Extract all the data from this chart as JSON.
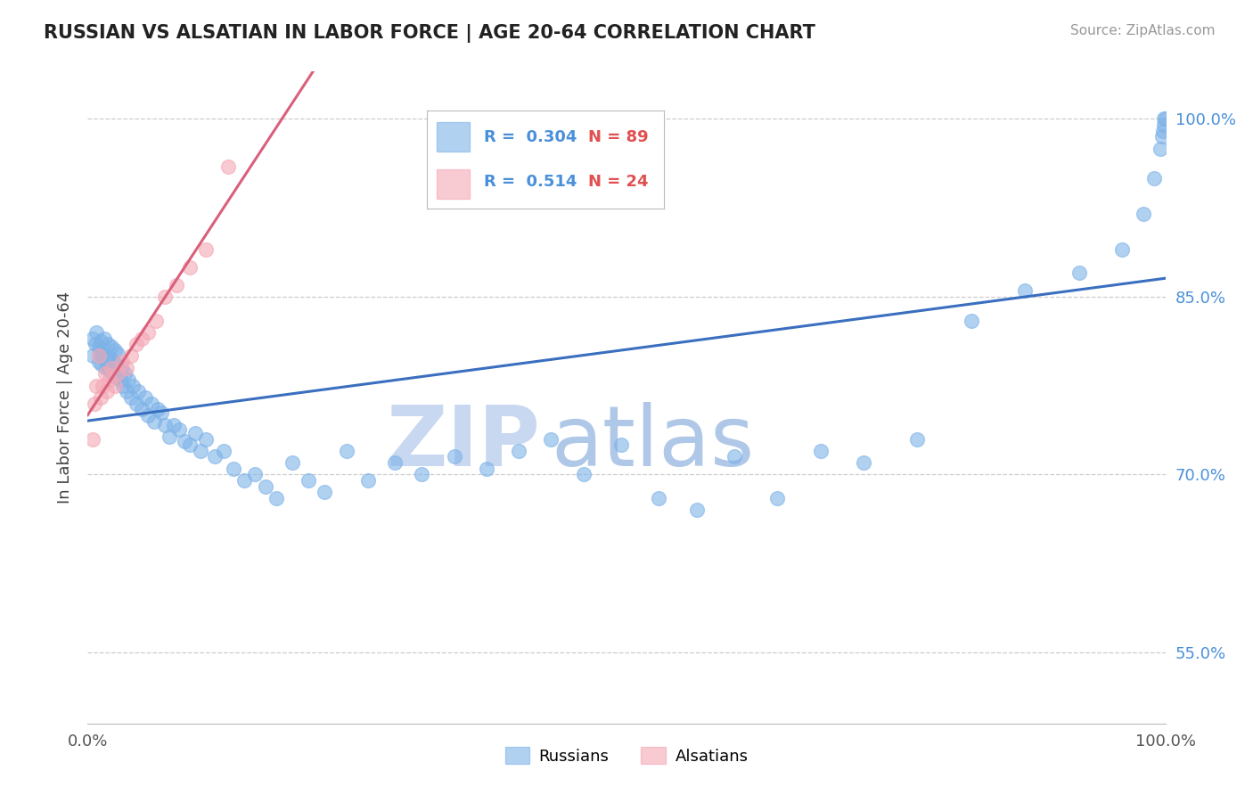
{
  "title": "RUSSIAN VS ALSATIAN IN LABOR FORCE | AGE 20-64 CORRELATION CHART",
  "source_text": "Source: ZipAtlas.com",
  "ylabel": "In Labor Force | Age 20-64",
  "xlim": [
    0.0,
    1.0
  ],
  "ylim": [
    0.49,
    1.04
  ],
  "right_yticks": [
    0.55,
    0.7,
    0.85,
    1.0
  ],
  "right_yticklabels": [
    "55.0%",
    "70.0%",
    "85.0%",
    "100.0%"
  ],
  "xtick_labels": [
    "0.0%",
    "100.0%"
  ],
  "xtick_vals": [
    0.0,
    1.0
  ],
  "russian_R": 0.304,
  "russian_N": 89,
  "alsatian_R": 0.514,
  "alsatian_N": 24,
  "russian_color": "#7EB3E8",
  "alsatian_color": "#F4A7B5",
  "russian_line_color": "#3A6FBF",
  "alsatian_line_color": "#D9607A",
  "background_color": "#FFFFFF",
  "grid_color": "#CCCCCC",
  "watermark_text": "ZIPatlas",
  "watermark_color": "#D0DFF0",
  "title_color": "#222222",
  "russians_x": [
    0.005,
    0.005,
    0.007,
    0.008,
    0.01,
    0.01,
    0.011,
    0.012,
    0.013,
    0.014,
    0.015,
    0.015,
    0.017,
    0.018,
    0.019,
    0.02,
    0.021,
    0.022,
    0.023,
    0.024,
    0.025,
    0.026,
    0.027,
    0.028,
    0.03,
    0.031,
    0.033,
    0.034,
    0.036,
    0.038,
    0.04,
    0.042,
    0.045,
    0.047,
    0.05,
    0.053,
    0.056,
    0.059,
    0.062,
    0.065,
    0.068,
    0.072,
    0.076,
    0.08,
    0.085,
    0.09,
    0.095,
    0.1,
    0.105,
    0.11,
    0.118,
    0.126,
    0.135,
    0.145,
    0.155,
    0.165,
    0.175,
    0.19,
    0.205,
    0.22,
    0.24,
    0.26,
    0.285,
    0.31,
    0.34,
    0.37,
    0.4,
    0.43,
    0.46,
    0.495,
    0.53,
    0.565,
    0.6,
    0.64,
    0.68,
    0.72,
    0.77,
    0.82,
    0.87,
    0.92,
    0.96,
    0.98,
    0.99,
    0.995,
    0.997,
    0.998,
    0.999,
    0.999,
    1.0
  ],
  "russians_y": [
    0.8,
    0.815,
    0.81,
    0.82,
    0.795,
    0.808,
    0.803,
    0.812,
    0.793,
    0.805,
    0.798,
    0.815,
    0.79,
    0.8,
    0.81,
    0.788,
    0.798,
    0.808,
    0.785,
    0.795,
    0.805,
    0.782,
    0.792,
    0.802,
    0.78,
    0.79,
    0.775,
    0.785,
    0.77,
    0.78,
    0.765,
    0.775,
    0.76,
    0.77,
    0.755,
    0.765,
    0.75,
    0.76,
    0.745,
    0.755,
    0.752,
    0.742,
    0.732,
    0.742,
    0.738,
    0.728,
    0.725,
    0.735,
    0.72,
    0.73,
    0.715,
    0.72,
    0.705,
    0.695,
    0.7,
    0.69,
    0.68,
    0.71,
    0.695,
    0.685,
    0.72,
    0.695,
    0.71,
    0.7,
    0.715,
    0.705,
    0.72,
    0.73,
    0.7,
    0.725,
    0.68,
    0.67,
    0.715,
    0.68,
    0.72,
    0.71,
    0.73,
    0.83,
    0.855,
    0.87,
    0.89,
    0.92,
    0.95,
    0.975,
    0.985,
    0.99,
    0.995,
    1.0,
    1.0
  ],
  "alsatians_x": [
    0.005,
    0.006,
    0.008,
    0.01,
    0.012,
    0.014,
    0.016,
    0.018,
    0.02,
    0.022,
    0.025,
    0.028,
    0.032,
    0.036,
    0.04,
    0.045,
    0.05,
    0.056,
    0.063,
    0.072,
    0.082,
    0.095,
    0.11,
    0.13
  ],
  "alsatians_y": [
    0.73,
    0.76,
    0.775,
    0.8,
    0.765,
    0.775,
    0.785,
    0.77,
    0.78,
    0.79,
    0.775,
    0.785,
    0.795,
    0.79,
    0.8,
    0.81,
    0.815,
    0.82,
    0.83,
    0.85,
    0.86,
    0.875,
    0.89,
    0.96
  ]
}
